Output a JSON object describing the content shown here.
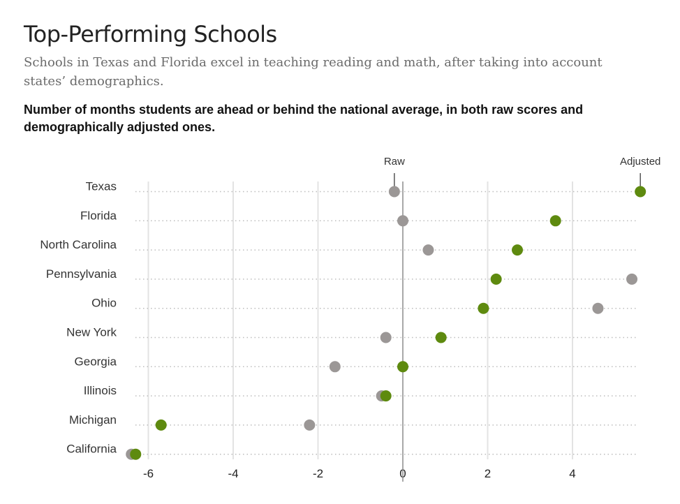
{
  "header": {
    "title": "Top-Performing Schools",
    "subtitle": "Schools in Texas and Florida excel in teaching reading and math, after taking into account states’ demographics.",
    "chart_heading": "Number of months students are ahead or behind the national average, in both raw scores and demographically adjusted ones."
  },
  "colors": {
    "raw": "#9b9796",
    "adjusted": "#5e8a0f",
    "zero_line": "#8c8c8c",
    "grid": "#e3e3e3",
    "dots": "#bdbdbd"
  },
  "chart_data": {
    "type": "scatter",
    "title": "Top-Performing Schools",
    "categories": [
      "Texas",
      "Florida",
      "North Carolina",
      "Pennsylvania",
      "Ohio",
      "New York",
      "Georgia",
      "Illinois",
      "Michigan",
      "California"
    ],
    "series": [
      {
        "name": "Raw",
        "values": [
          -0.2,
          0.0,
          0.6,
          5.4,
          4.6,
          -0.4,
          -1.6,
          -0.5,
          -2.2,
          -6.4
        ]
      },
      {
        "name": "Adjusted",
        "values": [
          5.6,
          3.6,
          2.7,
          2.2,
          1.9,
          0.9,
          0.0,
          -0.4,
          -5.7,
          -6.3
        ]
      }
    ],
    "xticks": [
      -6,
      -4,
      -2,
      0,
      2,
      4
    ],
    "xtick_labels": [
      "-6",
      "-4",
      "-2",
      "0",
      "2",
      "4"
    ],
    "xlim": [
      -6.4,
      5.6
    ],
    "grid": true,
    "legend": "labels above top row"
  }
}
